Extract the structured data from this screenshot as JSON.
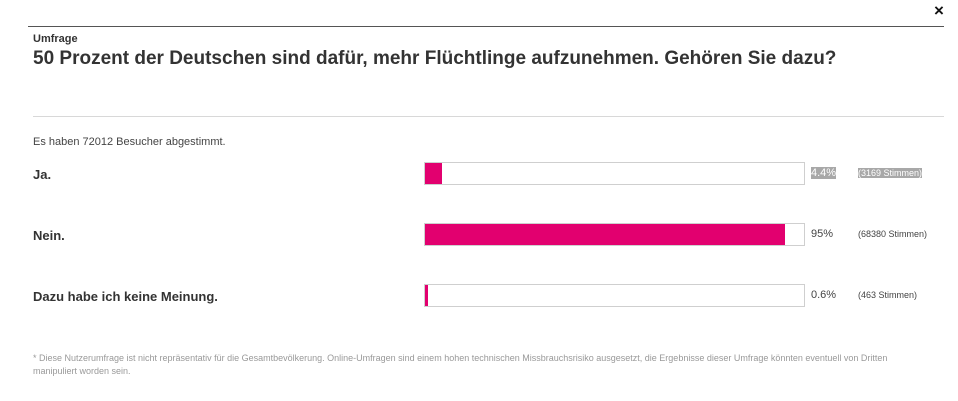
{
  "dialog": {
    "close_label": "×",
    "kicker": "Umfrage",
    "question": "50 Prozent der Deutschen sind dafür, mehr Flüchtlinge aufzunehmen. Gehören Sie dazu?",
    "vote_count_text": "Es haben 72012 Besucher abgestimmt.",
    "accent_color": "#e2006f",
    "options": [
      {
        "label": "Ja.",
        "percent_text": "4.4%",
        "votes_text": "(3169 Stimmen)",
        "fraction": 0.044,
        "highlighted": true
      },
      {
        "label": "Nein.",
        "percent_text": "95%",
        "votes_text": "(68380 Stimmen)",
        "fraction": 0.95,
        "highlighted": false
      },
      {
        "label": "Dazu habe ich keine Meinung.",
        "percent_text": "0.6%",
        "votes_text": "(463 Stimmen)",
        "fraction": 0.006,
        "highlighted": false
      }
    ],
    "footnote": "* Diese Nutzerumfrage ist nicht repräsentativ für die Gesamtbevölkerung. Online-Umfragen sind einem hohen technischen Missbrauchsrisiko ausgesetzt, die Ergebnisse dieser Umfrage könnten eventuell von Dritten manipuliert worden sein."
  }
}
